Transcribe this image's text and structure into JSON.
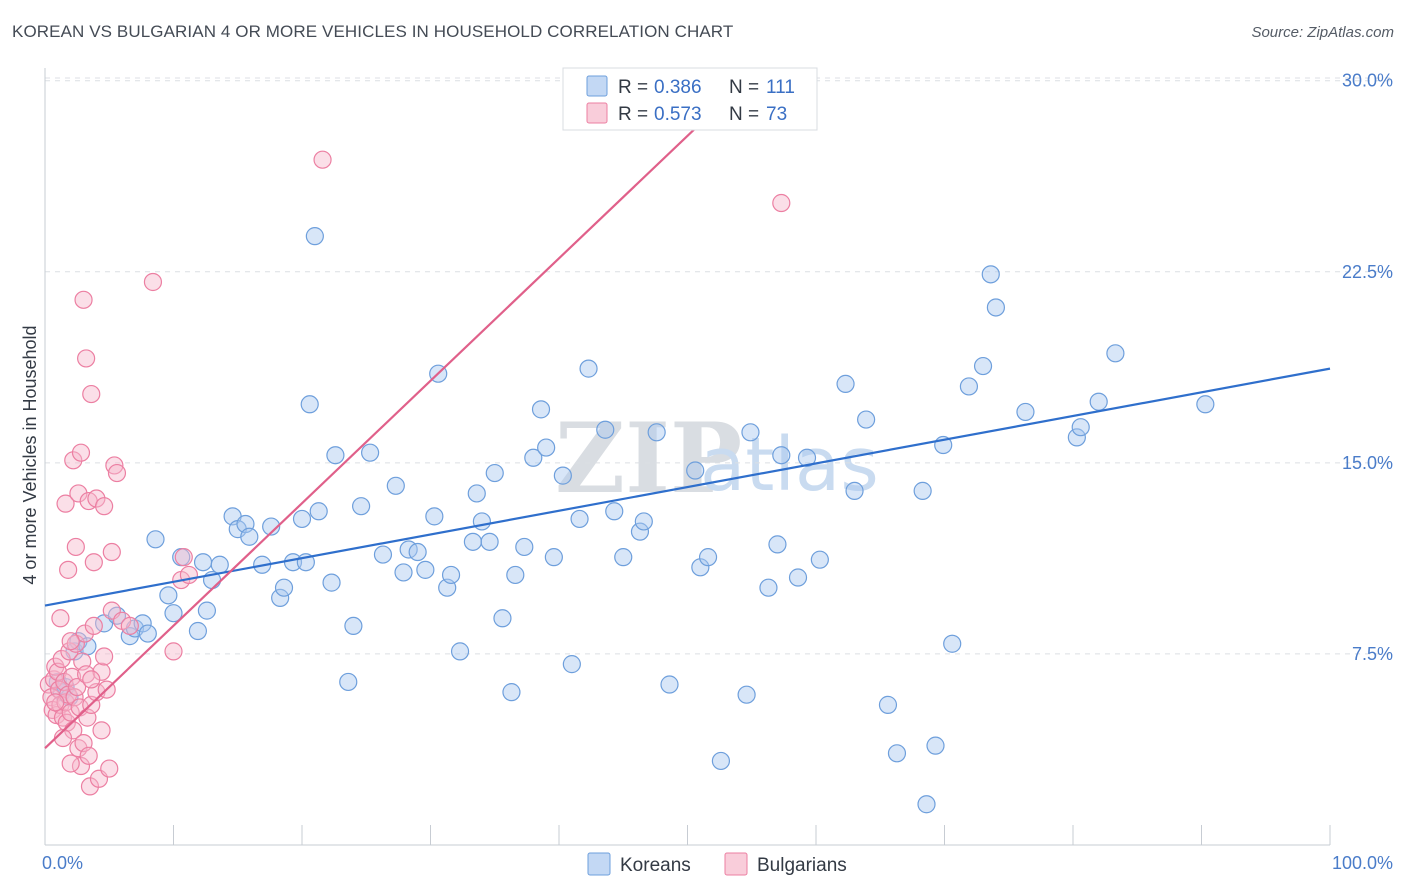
{
  "title": "KOREAN VS BULGARIAN 4 OR MORE VEHICLES IN HOUSEHOLD CORRELATION CHART",
  "source": "Source: ZipAtlas.com",
  "watermark": {
    "zip": "ZIP",
    "atlas": "atlas"
  },
  "colors": {
    "korean_fill": "#a9c7ef",
    "korean_stroke": "#6e9fdc",
    "korean_line": "#2f6fcc",
    "bulgarian_fill": "#f6b8cb",
    "bulgarian_stroke": "#ec7fa2",
    "bulgarian_line": "#e0608a",
    "tick_label": "#4a7cc9",
    "grid": "#dcdfe4"
  },
  "legend": {
    "items": [
      {
        "r_label": "R = ",
        "r_value": "0.386",
        "n_label": "N = ",
        "n_value": "111"
      },
      {
        "r_label": "R = ",
        "r_value": "0.573",
        "n_label": "N = ",
        "n_value": "73"
      }
    ]
  },
  "chart_data": {
    "type": "scatter",
    "title": "KOREAN VS BULGARIAN 4 OR MORE VEHICLES IN HOUSEHOLD CORRELATION CHART",
    "xlabel": "",
    "ylabel": "4 or more Vehicles in Household",
    "xlim": [
      0,
      100
    ],
    "ylim": [
      0,
      30.5
    ],
    "x_tick_labels": [
      {
        "value": 0,
        "label": "0.0%"
      },
      {
        "value": 100,
        "label": "100.0%"
      }
    ],
    "y_tick_labels": [
      {
        "value": 7.5,
        "label": "7.5%"
      },
      {
        "value": 15.0,
        "label": "15.0%"
      },
      {
        "value": 22.5,
        "label": "22.5%"
      },
      {
        "value": 30.0,
        "label": "30.0%"
      }
    ],
    "grid": "horizontal-dashed",
    "legend_position": "top-center",
    "series": [
      {
        "name": "Koreans",
        "r": 0.386,
        "n": 111,
        "trend": {
          "x": [
            0,
            100
          ],
          "y": [
            9.4,
            18.7
          ]
        },
        "points": [
          [
            1.0,
            6.4
          ],
          [
            1.3,
            6.0
          ],
          [
            1.6,
            6.2
          ],
          [
            1.9,
            5.8
          ],
          [
            2.3,
            7.6
          ],
          [
            2.6,
            8.0
          ],
          [
            3.3,
            7.8
          ],
          [
            4.6,
            8.7
          ],
          [
            5.6,
            9.0
          ],
          [
            6.6,
            8.2
          ],
          [
            7.0,
            8.5
          ],
          [
            7.6,
            8.7
          ],
          [
            8.0,
            8.3
          ],
          [
            8.6,
            12.0
          ],
          [
            9.6,
            9.8
          ],
          [
            10.0,
            9.1
          ],
          [
            10.6,
            11.3
          ],
          [
            11.9,
            8.4
          ],
          [
            12.3,
            11.1
          ],
          [
            12.6,
            9.2
          ],
          [
            13.0,
            10.4
          ],
          [
            13.6,
            11.0
          ],
          [
            14.6,
            12.9
          ],
          [
            15.0,
            12.4
          ],
          [
            15.6,
            12.6
          ],
          [
            15.9,
            12.1
          ],
          [
            16.9,
            11.0
          ],
          [
            17.6,
            12.5
          ],
          [
            18.3,
            9.7
          ],
          [
            18.6,
            10.1
          ],
          [
            19.3,
            11.1
          ],
          [
            20.0,
            12.8
          ],
          [
            20.3,
            11.1
          ],
          [
            20.6,
            17.3
          ],
          [
            21.3,
            13.1
          ],
          [
            22.3,
            10.3
          ],
          [
            22.6,
            15.3
          ],
          [
            23.6,
            6.4
          ],
          [
            24.0,
            8.6
          ],
          [
            24.6,
            13.3
          ],
          [
            25.3,
            15.4
          ],
          [
            26.3,
            11.4
          ],
          [
            27.3,
            14.1
          ],
          [
            27.9,
            10.7
          ],
          [
            28.3,
            11.6
          ],
          [
            29.0,
            11.5
          ],
          [
            29.6,
            10.8
          ],
          [
            30.3,
            12.9
          ],
          [
            30.6,
            18.5
          ],
          [
            31.3,
            10.1
          ],
          [
            31.6,
            10.6
          ],
          [
            32.3,
            7.6
          ],
          [
            33.3,
            11.9
          ],
          [
            33.6,
            13.8
          ],
          [
            34.0,
            12.7
          ],
          [
            34.6,
            11.9
          ],
          [
            35.0,
            14.6
          ],
          [
            35.6,
            8.9
          ],
          [
            36.3,
            6.0
          ],
          [
            36.6,
            10.6
          ],
          [
            37.3,
            11.7
          ],
          [
            38.0,
            15.2
          ],
          [
            38.6,
            17.1
          ],
          [
            39.0,
            15.6
          ],
          [
            39.6,
            11.3
          ],
          [
            40.3,
            14.5
          ],
          [
            41.0,
            7.1
          ],
          [
            41.6,
            12.8
          ],
          [
            42.3,
            18.7
          ],
          [
            43.6,
            16.3
          ],
          [
            44.3,
            13.1
          ],
          [
            45.0,
            11.3
          ],
          [
            46.3,
            12.3
          ],
          [
            46.6,
            12.7
          ],
          [
            47.6,
            16.2
          ],
          [
            48.6,
            6.3
          ],
          [
            49.0,
            29.0
          ],
          [
            50.6,
            14.7
          ],
          [
            51.0,
            10.9
          ],
          [
            51.6,
            11.3
          ],
          [
            52.6,
            3.3
          ],
          [
            54.6,
            5.9
          ],
          [
            54.9,
            16.2
          ],
          [
            56.3,
            10.1
          ],
          [
            57.0,
            11.8
          ],
          [
            57.3,
            15.3
          ],
          [
            58.6,
            10.5
          ],
          [
            59.3,
            15.2
          ],
          [
            60.3,
            11.2
          ],
          [
            62.3,
            18.1
          ],
          [
            63.0,
            13.9
          ],
          [
            63.9,
            16.7
          ],
          [
            65.6,
            5.5
          ],
          [
            66.3,
            3.6
          ],
          [
            68.3,
            13.9
          ],
          [
            68.6,
            1.6
          ],
          [
            69.3,
            3.9
          ],
          [
            69.9,
            15.7
          ],
          [
            70.6,
            7.9
          ],
          [
            71.9,
            18.0
          ],
          [
            73.0,
            18.8
          ],
          [
            73.6,
            22.4
          ],
          [
            74.0,
            21.1
          ],
          [
            76.3,
            17.0
          ],
          [
            80.3,
            16.0
          ],
          [
            82.0,
            17.4
          ],
          [
            83.3,
            19.3
          ],
          [
            90.3,
            17.3
          ],
          [
            55.6,
            28.6
          ],
          [
            80.6,
            16.4
          ],
          [
            21.0,
            23.9
          ]
        ]
      },
      {
        "name": "Bulgarians",
        "r": 0.573,
        "n": 73,
        "trend": {
          "x": [
            0,
            54.5
          ],
          "y": [
            3.8,
            30.0
          ]
        },
        "points": [
          [
            0.3,
            6.3
          ],
          [
            0.5,
            5.8
          ],
          [
            0.6,
            5.3
          ],
          [
            0.7,
            6.5
          ],
          [
            0.8,
            7.0
          ],
          [
            0.9,
            5.1
          ],
          [
            1.0,
            6.8
          ],
          [
            1.1,
            6.1
          ],
          [
            1.2,
            5.5
          ],
          [
            1.3,
            7.3
          ],
          [
            1.4,
            5.0
          ],
          [
            1.5,
            6.4
          ],
          [
            1.6,
            5.6
          ],
          [
            1.7,
            4.8
          ],
          [
            1.8,
            5.9
          ],
          [
            1.9,
            7.6
          ],
          [
            2.0,
            5.2
          ],
          [
            2.1,
            6.6
          ],
          [
            2.2,
            4.5
          ],
          [
            2.3,
            5.8
          ],
          [
            2.4,
            7.9
          ],
          [
            2.5,
            6.2
          ],
          [
            2.6,
            3.8
          ],
          [
            2.7,
            5.4
          ],
          [
            2.8,
            3.1
          ],
          [
            2.9,
            7.2
          ],
          [
            3.0,
            4.0
          ],
          [
            3.1,
            8.3
          ],
          [
            3.2,
            6.7
          ],
          [
            3.3,
            5.0
          ],
          [
            3.4,
            3.5
          ],
          [
            3.5,
            2.3
          ],
          [
            3.6,
            5.5
          ],
          [
            3.8,
            8.6
          ],
          [
            4.0,
            6.0
          ],
          [
            4.2,
            2.6
          ],
          [
            4.4,
            6.8
          ],
          [
            4.6,
            7.4
          ],
          [
            4.8,
            6.1
          ],
          [
            5.0,
            3.0
          ],
          [
            5.2,
            9.2
          ],
          [
            1.2,
            8.9
          ],
          [
            1.6,
            13.4
          ],
          [
            1.8,
            10.8
          ],
          [
            2.2,
            15.1
          ],
          [
            2.4,
            11.7
          ],
          [
            2.6,
            13.8
          ],
          [
            2.8,
            15.4
          ],
          [
            3.0,
            21.4
          ],
          [
            3.2,
            19.1
          ],
          [
            3.4,
            13.5
          ],
          [
            3.6,
            17.7
          ],
          [
            3.8,
            11.1
          ],
          [
            4.0,
            13.6
          ],
          [
            4.6,
            13.3
          ],
          [
            5.2,
            11.5
          ],
          [
            5.4,
            14.9
          ],
          [
            5.6,
            14.6
          ],
          [
            6.0,
            8.8
          ],
          [
            6.6,
            8.6
          ],
          [
            8.4,
            22.1
          ],
          [
            10.0,
            7.6
          ],
          [
            10.6,
            10.4
          ],
          [
            10.8,
            11.3
          ],
          [
            11.2,
            10.6
          ],
          [
            21.6,
            26.9
          ],
          [
            57.3,
            25.2
          ],
          [
            2.0,
            8.0
          ],
          [
            1.4,
            4.2
          ],
          [
            0.8,
            5.6
          ],
          [
            2.0,
            3.2
          ],
          [
            4.4,
            4.5
          ],
          [
            3.6,
            6.5
          ]
        ]
      }
    ]
  },
  "bottom_legend": [
    "Koreans",
    "Bulgarians"
  ]
}
